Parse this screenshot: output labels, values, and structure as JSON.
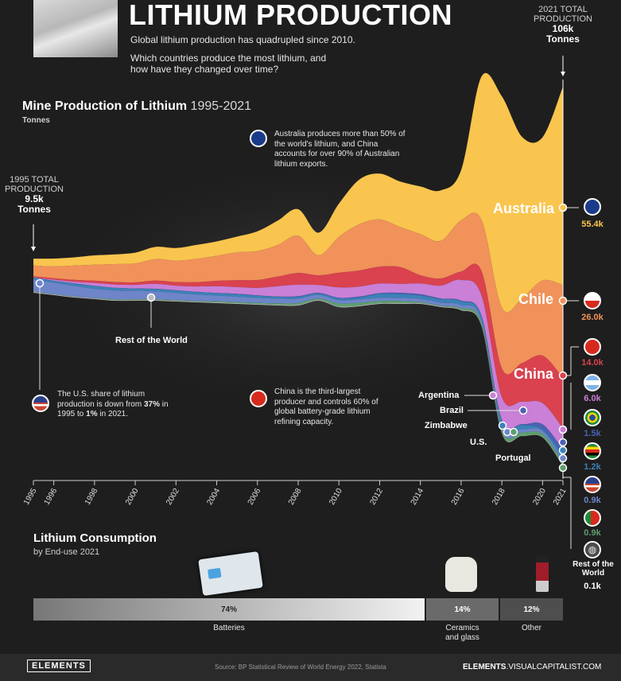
{
  "header": {
    "title": "LITHIUM PRODUCTION",
    "subtitle1": "Global lithium production has quadrupled since 2010.",
    "subtitle2": "Which countries produce the most lithium, and how have they changed over time?"
  },
  "totals": {
    "t2021_label": "2021 TOTAL PRODUCTION",
    "t2021_value": "106k",
    "t2021_unit": "Tonnes",
    "t1995_label": "1995 TOTAL PRODUCTION",
    "t1995_value": "9.5k",
    "t1995_unit": "Tonnes"
  },
  "annotations": {
    "australia": "Australia produces more than 50% of the world's lithium, and China accounts for over 90% of Australian lithium exports.",
    "us_part1": "The U.S. share of lithium production is down from ",
    "us_b1": "37%",
    "us_part2": " in 1995 to ",
    "us_b2": "1%",
    "us_part3": " in 2021.",
    "china": "China is the third-largest producer and controls 60% of global battery-grade lithium refining capacity."
  },
  "chart_data": {
    "type": "area",
    "title": "Mine Production of Lithium",
    "title_range": "1995-2021",
    "unit": "Tonnes",
    "x": [
      1995,
      1996,
      1997,
      1998,
      1999,
      2000,
      2001,
      2002,
      2003,
      2004,
      2005,
      2006,
      2007,
      2008,
      2009,
      2010,
      2011,
      2012,
      2013,
      2014,
      2015,
      2016,
      2017,
      2018,
      2019,
      2020,
      2021
    ],
    "tick_labels": [
      "1995",
      "1996",
      "1998",
      "2000",
      "2002",
      "2004",
      "2006",
      "2008",
      "2010",
      "2012",
      "2014",
      "2016",
      "2018",
      "2020",
      "2021"
    ],
    "series": [
      {
        "name": "Australia",
        "color": "#f9c54e",
        "values": [
          1.9,
          2.2,
          2.3,
          2.6,
          2.7,
          3.0,
          3.4,
          3.5,
          3.9,
          4.0,
          4.4,
          5.5,
          6.8,
          7.4,
          6.3,
          9.3,
          12.5,
          12.8,
          12.7,
          13.3,
          14.1,
          14.0,
          40.0,
          59.0,
          45.0,
          40.0,
          55.4
        ]
      },
      {
        "name": "Chile",
        "color": "#f0925a",
        "values": [
          3.0,
          3.3,
          4.0,
          4.5,
          5.0,
          5.3,
          6.0,
          6.0,
          6.5,
          7.0,
          7.8,
          8.1,
          8.8,
          10.4,
          5.6,
          10.0,
          12.9,
          13.2,
          11.2,
          11.5,
          10.5,
          14.3,
          14.3,
          17.0,
          18.1,
          21.0,
          26.0
        ]
      },
      {
        "name": "China",
        "color": "#d9424e",
        "values": [
          0.3,
          0.4,
          0.5,
          0.6,
          0.7,
          0.7,
          0.9,
          1.0,
          1.2,
          1.5,
          1.9,
          2.2,
          2.7,
          3.3,
          2.7,
          4.1,
          4.5,
          4.7,
          4.7,
          2.3,
          2.0,
          2.3,
          6.8,
          8.0,
          10.8,
          13.3,
          14.0
        ]
      },
      {
        "name": "Argentina",
        "color": "#c980d6",
        "values": [
          0.1,
          0.3,
          0.5,
          0.8,
          0.9,
          1.0,
          1.4,
          1.3,
          1.5,
          1.9,
          1.9,
          2.1,
          2.9,
          3.2,
          2.2,
          2.9,
          2.8,
          2.7,
          2.5,
          3.0,
          3.6,
          5.8,
          5.7,
          6.4,
          6.3,
          5.9,
          6.0
        ]
      },
      {
        "name": "Brazil",
        "color": "#4a63b3",
        "values": [
          0.03,
          0.03,
          0.03,
          0.03,
          0.03,
          0.03,
          0.03,
          0.03,
          0.03,
          0.03,
          0.1,
          0.1,
          0.1,
          0.2,
          0.2,
          0.2,
          0.3,
          0.2,
          0.4,
          0.4,
          0.2,
          0.2,
          0.2,
          0.3,
          0.2,
          1.4,
          1.5
        ]
      },
      {
        "name": "Zimbabwe",
        "color": "#3b82b8",
        "values": [
          0.4,
          0.5,
          0.6,
          0.8,
          0.7,
          0.6,
          0.7,
          0.7,
          0.7,
          0.7,
          0.7,
          0.6,
          0.5,
          0.5,
          0.4,
          0.5,
          0.5,
          1.1,
          1.0,
          0.9,
          0.9,
          1.0,
          0.8,
          1.6,
          1.2,
          0.4,
          1.2
        ]
      },
      {
        "name": "U.S.",
        "color": "#6e85c9",
        "values": [
          3.5,
          3.2,
          3.0,
          2.6,
          2.5,
          2.4,
          2.2,
          2.0,
          1.8,
          1.6,
          1.5,
          1.4,
          1.3,
          1.2,
          1.0,
          0.9,
          0.9,
          0.9,
          0.9,
          0.9,
          0.9,
          0.9,
          0.9,
          0.9,
          0.9,
          0.9,
          0.9
        ]
      },
      {
        "name": "Portugal",
        "color": "#5e9e6e",
        "values": [
          0.1,
          0.1,
          0.1,
          0.1,
          0.2,
          0.2,
          0.2,
          0.2,
          0.2,
          0.3,
          0.3,
          0.3,
          0.4,
          0.5,
          0.4,
          0.8,
          0.8,
          0.6,
          0.6,
          0.3,
          0.2,
          0.4,
          0.8,
          0.8,
          0.9,
          0.9,
          0.9
        ]
      },
      {
        "name": "Rest of the World",
        "color": "#bcbcbc",
        "values": [
          0.2,
          0.2,
          0.2,
          0.2,
          0.2,
          0.2,
          0.2,
          0.2,
          0.2,
          0.2,
          0.2,
          0.2,
          0.2,
          0.2,
          0.2,
          0.2,
          0.2,
          0.2,
          0.2,
          0.2,
          0.2,
          0.2,
          0.2,
          0.2,
          0.1,
          0.1,
          0.1
        ]
      }
    ],
    "region_labels": {
      "australia": "Australia",
      "chile": "Chile",
      "china": "China"
    },
    "callout_labels": {
      "row": "Rest of the World",
      "argentina": "Argentina",
      "brazil": "Brazil",
      "zimbabwe": "Zimbabwe",
      "us": "U.S.",
      "portugal": "Portugal"
    },
    "values_2021": {
      "australia": "55.4k",
      "chile": "26.0k",
      "china": "14.0k",
      "argentina": "6.0k",
      "brazil": "1.5k",
      "zimbabwe": "1.2k",
      "us": "0.9k",
      "portugal": "0.9k",
      "row_label": "Rest of the World",
      "row": "0.1k"
    }
  },
  "consumption": {
    "title": "Lithium Consumption",
    "subtitle": "by End-use 2021",
    "segments": [
      {
        "label": "Batteries",
        "pct": "74%",
        "value": 74
      },
      {
        "label": "Ceramics and glass",
        "pct": "14%",
        "value": 14
      },
      {
        "label": "Other",
        "pct": "12%",
        "value": 12
      }
    ]
  },
  "footer": {
    "logo": "ELEMENTS",
    "source": "Source: BP Statistical Review of World Energy 2022,  Statista",
    "site_bold": "ELEMENTS",
    "site_rest": ".VISUALCAPITALIST.COM"
  },
  "colors": {
    "australia": "#f9c54e",
    "chile": "#f0925a",
    "china": "#d9424e",
    "argentina": "#c980d6",
    "brazil": "#4a63b3",
    "zimbabwe": "#3b82b8",
    "us": "#6e85c9",
    "portugal": "#5e9e6e",
    "row": "#bcbcbc"
  }
}
